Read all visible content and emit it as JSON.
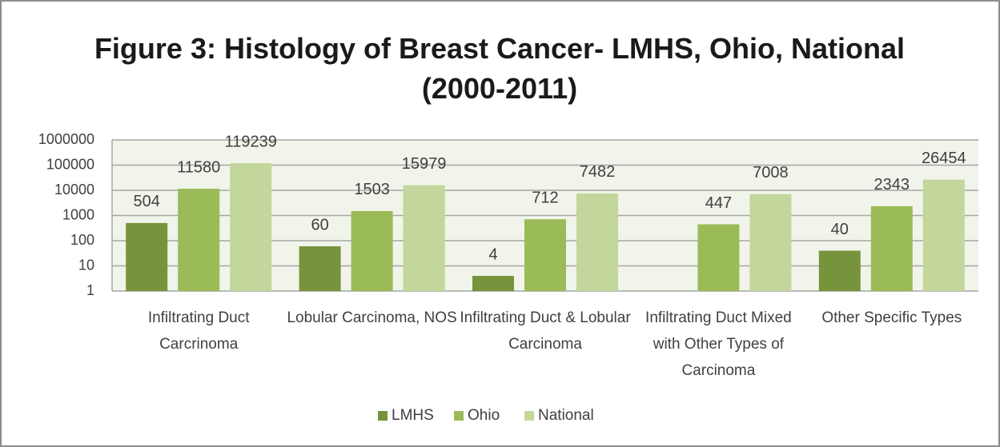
{
  "chart_data": {
    "type": "bar",
    "title": "Figure 3: Histology of Breast Cancer- LMHS, Ohio, National (2000-2011)",
    "categories": [
      "Infiltrating Duct Carcrinoma",
      "Lobular Carcinoma, NOS",
      "Infiltrating Duct & Lobular Carcinoma",
      "Infiltrating Duct Mixed with Other Types of Carcinoma",
      "Other Specific Types"
    ],
    "series": [
      {
        "name": "LMHS",
        "color": "#77933c",
        "values": [
          504,
          60,
          4,
          null,
          40
        ]
      },
      {
        "name": "Ohio",
        "color": "#9bbb59",
        "values": [
          11580,
          1503,
          712,
          447,
          2343
        ]
      },
      {
        "name": "National",
        "color": "#c3d69b",
        "values": [
          119239,
          15979,
          7482,
          7008,
          26454
        ]
      }
    ],
    "ylim": [
      1,
      1000000
    ],
    "yticks": [
      1,
      10,
      100,
      1000,
      10000,
      100000,
      1000000
    ],
    "log_scale": true,
    "grid": true,
    "legend": "bottom"
  }
}
